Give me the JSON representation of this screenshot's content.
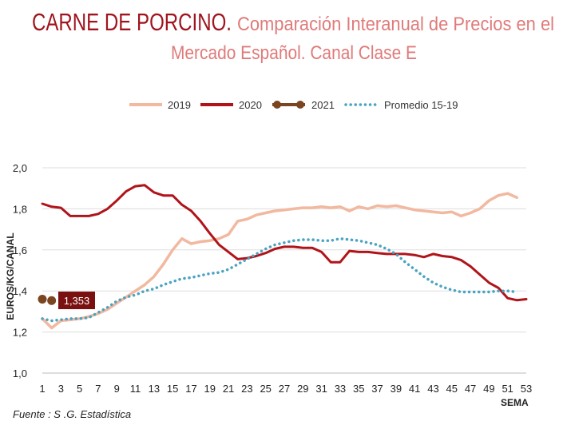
{
  "title": {
    "main": "CARNE DE PORCINO.",
    "sub_line1": "Comparación Interanual de Precios en el",
    "sub_line2": "Mercado Español. Canal Clase E"
  },
  "source": "Fuente : S .G. Estadística",
  "colors": {
    "title_main": "#a0141e",
    "title_sub": "#e07a7a",
    "s2019": "#f2b8a0",
    "s2020": "#b0141a",
    "s2021": "#7a4520",
    "avg": "#4aa3c0",
    "grid": "#dddddd",
    "label_box": "#7a1010"
  },
  "chart_data": {
    "type": "line",
    "ylabel": "EUROS/KG/CANAL",
    "xlabel": "SEMA",
    "ylim": [
      1.0,
      2.0
    ],
    "yticks": [
      "1,0",
      "1,2",
      "1,4",
      "1,6",
      "1,8",
      "2,0"
    ],
    "xticks": [
      "1",
      "3",
      "5",
      "7",
      "9",
      "11",
      "13",
      "15",
      "17",
      "19",
      "21",
      "23",
      "25",
      "27",
      "29",
      "31",
      "33",
      "35",
      "37",
      "39",
      "41",
      "43",
      "45",
      "47",
      "49",
      "51",
      "53"
    ],
    "xlim": [
      1,
      53
    ],
    "grid": "horizontal",
    "legend": "top",
    "annotation": "1,353",
    "series": [
      {
        "name": "2019",
        "style": "solid",
        "x": [
          1,
          2,
          3,
          4,
          5,
          6,
          7,
          8,
          9,
          10,
          11,
          12,
          13,
          14,
          15,
          16,
          17,
          18,
          19,
          20,
          21,
          22,
          23,
          24,
          25,
          26,
          27,
          28,
          29,
          30,
          31,
          32,
          33,
          34,
          35,
          36,
          37,
          38,
          39,
          40,
          41,
          42,
          43,
          44,
          45,
          46,
          47,
          48,
          49,
          50,
          51,
          52
        ],
        "values": [
          1.265,
          1.22,
          1.255,
          1.26,
          1.265,
          1.275,
          1.29,
          1.31,
          1.34,
          1.37,
          1.4,
          1.43,
          1.47,
          1.53,
          1.6,
          1.655,
          1.63,
          1.64,
          1.645,
          1.655,
          1.675,
          1.74,
          1.75,
          1.77,
          1.78,
          1.79,
          1.795,
          1.8,
          1.805,
          1.805,
          1.81,
          1.805,
          1.81,
          1.79,
          1.81,
          1.8,
          1.815,
          1.81,
          1.815,
          1.805,
          1.795,
          1.79,
          1.785,
          1.78,
          1.785,
          1.765,
          1.78,
          1.8,
          1.84,
          1.865,
          1.875,
          1.855
        ]
      },
      {
        "name": "2020",
        "style": "solid",
        "x": [
          1,
          2,
          3,
          4,
          5,
          6,
          7,
          8,
          9,
          10,
          11,
          12,
          13,
          14,
          15,
          16,
          17,
          18,
          19,
          20,
          21,
          22,
          23,
          24,
          25,
          26,
          27,
          28,
          29,
          30,
          31,
          32,
          33,
          34,
          35,
          36,
          37,
          38,
          39,
          40,
          41,
          42,
          43,
          44,
          45,
          46,
          47,
          48,
          49,
          50,
          51,
          52,
          53
        ],
        "values": [
          1.825,
          1.81,
          1.805,
          1.765,
          1.765,
          1.765,
          1.775,
          1.8,
          1.84,
          1.885,
          1.91,
          1.915,
          1.88,
          1.865,
          1.865,
          1.82,
          1.79,
          1.74,
          1.68,
          1.625,
          1.59,
          1.555,
          1.56,
          1.57,
          1.585,
          1.605,
          1.615,
          1.615,
          1.61,
          1.61,
          1.59,
          1.54,
          1.54,
          1.595,
          1.59,
          1.59,
          1.585,
          1.58,
          1.58,
          1.58,
          1.575,
          1.565,
          1.58,
          1.57,
          1.565,
          1.55,
          1.52,
          1.48,
          1.44,
          1.415,
          1.365,
          1.355,
          1.36
        ]
      },
      {
        "name": "2021",
        "style": "markers",
        "x": [
          1,
          2
        ],
        "values": [
          1.36,
          1.353
        ]
      },
      {
        "name": "Promedio 15-19",
        "style": "dotted",
        "x": [
          1,
          2,
          3,
          4,
          5,
          6,
          7,
          8,
          9,
          10,
          11,
          12,
          13,
          14,
          15,
          16,
          17,
          18,
          19,
          20,
          21,
          22,
          23,
          24,
          25,
          26,
          27,
          28,
          29,
          30,
          31,
          32,
          33,
          34,
          35,
          36,
          37,
          38,
          39,
          40,
          41,
          42,
          43,
          44,
          45,
          46,
          47,
          48,
          49,
          50,
          51,
          52
        ],
        "values": [
          1.265,
          1.255,
          1.26,
          1.265,
          1.265,
          1.27,
          1.295,
          1.32,
          1.35,
          1.37,
          1.38,
          1.4,
          1.41,
          1.43,
          1.445,
          1.46,
          1.465,
          1.475,
          1.485,
          1.49,
          1.505,
          1.53,
          1.555,
          1.58,
          1.605,
          1.625,
          1.635,
          1.645,
          1.65,
          1.65,
          1.645,
          1.645,
          1.655,
          1.65,
          1.645,
          1.635,
          1.625,
          1.605,
          1.58,
          1.54,
          1.505,
          1.47,
          1.44,
          1.42,
          1.405,
          1.395,
          1.395,
          1.395,
          1.395,
          1.4,
          1.4,
          1.395
        ]
      }
    ]
  }
}
